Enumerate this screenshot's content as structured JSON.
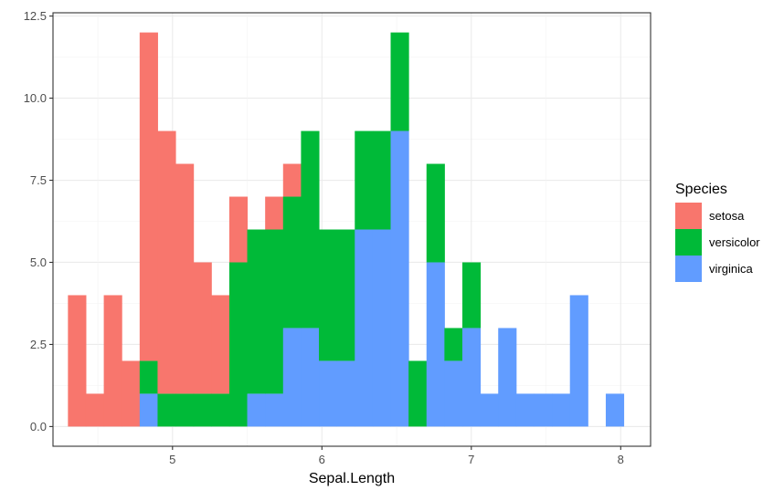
{
  "chart_data": {
    "type": "bar",
    "stacked": true,
    "histogram": true,
    "bin_width": 0.12,
    "x_bin_starts": [
      4.3,
      4.42,
      4.54,
      4.66,
      4.78,
      4.9,
      5.02,
      5.14,
      5.26,
      5.38,
      5.5,
      5.62,
      5.74,
      5.86,
      5.98,
      6.1,
      6.22,
      6.34,
      6.46,
      6.58,
      6.7,
      6.82,
      6.94,
      7.06,
      7.18,
      7.3,
      7.42,
      7.54,
      7.66,
      7.78,
      7.9
    ],
    "series": [
      {
        "name": "setosa",
        "color": "#F8766D",
        "values": [
          4,
          1,
          4,
          2,
          10,
          8,
          7,
          4,
          3,
          2,
          0,
          1,
          1,
          0,
          0,
          0,
          0,
          0,
          0,
          0,
          0,
          0,
          0,
          0,
          0,
          0,
          0,
          0,
          0,
          0,
          0
        ]
      },
      {
        "name": "versicolor",
        "color": "#00BA38",
        "values": [
          0,
          0,
          0,
          0,
          1,
          1,
          1,
          1,
          1,
          5,
          5,
          5,
          4,
          6,
          4,
          4,
          3,
          3,
          3,
          2,
          3,
          1,
          2,
          0,
          0,
          0,
          0,
          0,
          0,
          0,
          0
        ]
      },
      {
        "name": "virginica",
        "color": "#619CFF",
        "values": [
          0,
          0,
          0,
          0,
          1,
          0,
          0,
          0,
          0,
          0,
          1,
          1,
          3,
          3,
          2,
          2,
          6,
          6,
          9,
          0,
          5,
          2,
          3,
          1,
          3,
          1,
          1,
          1,
          4,
          0,
          1
        ]
      }
    ],
    "xlabel": "Sepal.Length",
    "ylabel": "",
    "xlim": [
      4.2,
      8.2
    ],
    "ylim": [
      -0.6,
      12.6
    ],
    "x_ticks": [
      5,
      6,
      7,
      8
    ],
    "x_tick_labels": [
      "5",
      "6",
      "7",
      "8"
    ],
    "y_ticks": [
      0,
      2.5,
      5,
      7.5,
      10,
      12.5
    ],
    "y_tick_labels": [
      "0.0",
      "2.5",
      "5.0",
      "7.5",
      "10.0",
      "12.5"
    ],
    "grid": true,
    "legend": {
      "title": "Species",
      "position": "right"
    }
  }
}
